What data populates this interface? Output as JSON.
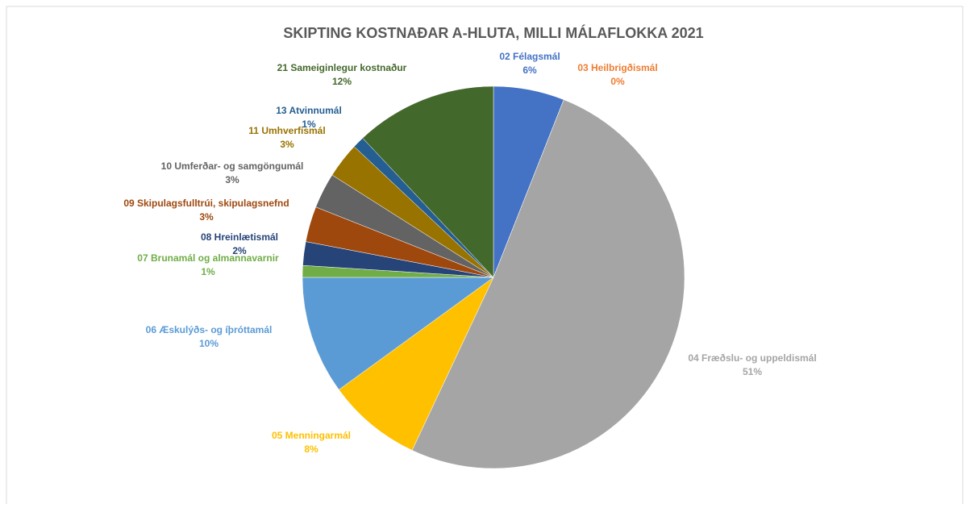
{
  "chart_data": {
    "type": "pie",
    "title": "SKIPTING KOSTNAÐAR A-HLUTA, MILLI MÁLAFLOKKA 2021",
    "categories": [
      "02  Félagsmál",
      "03  Heilbrigðismál",
      "04  Fræðslu- og uppeldismál",
      "05  Menningarmál",
      "06  Æskulýðs- og íþróttamál",
      "07  Brunamál og almannavarnir",
      "08  Hreinlætismál",
      "09  Skipulagsfulltrúi, skipulagsnefnd",
      "10  Umferðar- og samgöngumál",
      "11  Umhverfismál",
      "13  Atvinnumál",
      "21  Sameiginlegur kostnaður"
    ],
    "values": [
      6,
      0,
      51,
      8,
      10,
      1,
      2,
      3,
      3,
      3,
      1,
      12
    ],
    "value_labels": [
      "6%",
      "0%",
      "51%",
      "8%",
      "10%",
      "1%",
      "2%",
      "3%",
      "3%",
      "3%",
      "1%",
      "12%"
    ],
    "colors": [
      "#4472c4",
      "#ed7d31",
      "#a5a5a5",
      "#ffc000",
      "#5b9bd5",
      "#70ad47",
      "#264478",
      "#9e480e",
      "#636363",
      "#997300",
      "#255e91",
      "#43682b"
    ]
  }
}
